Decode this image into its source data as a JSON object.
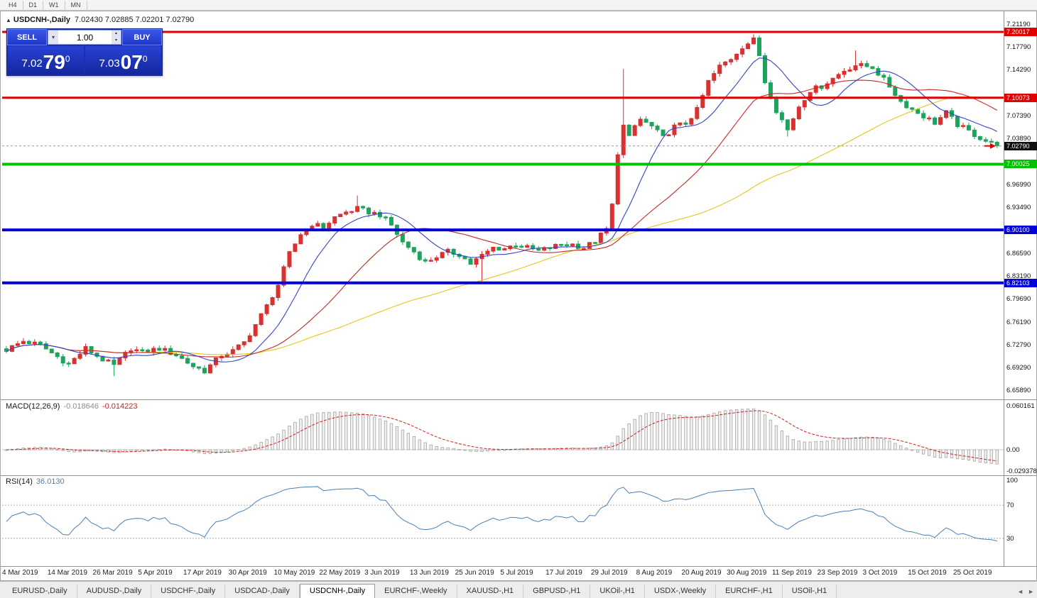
{
  "timeframe_bar": {
    "buttons": [
      "H4",
      "D1",
      "W1",
      "MN"
    ]
  },
  "icons": {
    "title_marker": "▲",
    "dropdown": "▾",
    "spin_up": "▴",
    "spin_down": "▾",
    "scroll_left": "◄",
    "scroll_right": "►"
  },
  "chart": {
    "symbol": "USDCNH-,Daily",
    "ohlc": "7.02430 7.02885 7.02201 7.02790"
  },
  "trade_panel": {
    "sell_label": "SELL",
    "buy_label": "BUY",
    "volume": "1.00",
    "sell_price": {
      "big": "7.02",
      "pips": "79",
      "sup": "0"
    },
    "buy_price": {
      "big": "7.03",
      "pips": "07",
      "sup": "0"
    }
  },
  "price_axis_ticks": [
    {
      "label": "7.21190",
      "price": 7.2119
    },
    {
      "label": "7.17790",
      "price": 7.1779
    },
    {
      "label": "7.14290",
      "price": 7.1429
    },
    {
      "label": "7.07390",
      "price": 7.0739
    },
    {
      "label": "7.03890",
      "price": 7.0389
    },
    {
      "label": "6.96990",
      "price": 6.9699
    },
    {
      "label": "6.93490",
      "price": 6.9349
    },
    {
      "label": "6.86590",
      "price": 6.8659
    },
    {
      "label": "6.83190",
      "price": 6.8319
    },
    {
      "label": "6.79690",
      "price": 6.7969
    },
    {
      "label": "6.76190",
      "price": 6.7619
    },
    {
      "label": "6.72790",
      "price": 6.7279
    },
    {
      "label": "6.69290",
      "price": 6.6929
    },
    {
      "label": "6.65890",
      "price": 6.6589
    }
  ],
  "macd_panel": {
    "name": "MACD(12,26,9)",
    "value_main": "-0.018646",
    "value_signal": "-0.014223",
    "axis": [
      {
        "label": "0.060161",
        "value": 0.060161
      },
      {
        "label": "0.00",
        "value": 0
      },
      {
        "label": "-0.029378",
        "value": -0.029378
      }
    ]
  },
  "rsi_panel": {
    "name": "RSI(14)",
    "value": "36.0130",
    "levels": [
      70,
      30
    ],
    "axis": [
      {
        "label": "100",
        "value": 100
      },
      {
        "label": "70",
        "value": 70
      },
      {
        "label": "30",
        "value": 30
      }
    ]
  },
  "time_axis": [
    "4 Mar 2019",
    "14 Mar 2019",
    "26 Mar 2019",
    "5 Apr 2019",
    "17 Apr 2019",
    "30 Apr 2019",
    "10 May 2019",
    "22 May 2019",
    "3 Jun 2019",
    "13 Jun 2019",
    "25 Jun 2019",
    "5 Jul 2019",
    "17 Jul 2019",
    "29 Jul 2019",
    "8 Aug 2019",
    "20 Aug 2019",
    "30 Aug 2019",
    "11 Sep 2019",
    "23 Sep 2019",
    "3 Oct 2019",
    "15 Oct 2019",
    "25 Oct 2019"
  ],
  "tab_bar": {
    "tabs": [
      "EURUSD-,Daily",
      "AUDUSD-,Daily",
      "USDCHF-,Daily",
      "USDCAD-,Daily",
      "USDCNH-,Daily",
      "EURCHF-,Weekly",
      "XAUUSD-,H1",
      "GBPUSD-,H1",
      "UKOil-,H1",
      "USDX-,Weekly",
      "EURCHF-,H1",
      "USOil-,H1"
    ],
    "active": "USDCNH-,Daily"
  },
  "chart_data": {
    "type": "candlestick",
    "symbol": "USDCNH",
    "timeframe": "Daily",
    "bars": 176,
    "price_range": [
      6.6589,
      7.2119
    ],
    "current": {
      "label": "7.02790",
      "price": 7.0279,
      "badge_color": "#101010"
    },
    "levels": [
      {
        "label": "7.20017",
        "price": 7.20017,
        "color": "#e00000",
        "width": 3
      },
      {
        "label": "7.10073",
        "price": 7.10073,
        "color": "#e00000",
        "width": 3
      },
      {
        "label": "7.00025",
        "price": 7.00025,
        "color": "#00c000",
        "width": 4
      },
      {
        "label": "6.90100",
        "price": 6.901,
        "color": "#0000d8",
        "width": 4
      },
      {
        "label": "6.82103",
        "price": 6.82103,
        "color": "#0000d8",
        "width": 4
      }
    ],
    "price_anchors": [
      [
        0,
        6.72
      ],
      [
        3,
        6.733
      ],
      [
        6,
        6.727
      ],
      [
        8,
        6.715
      ],
      [
        11,
        6.698
      ],
      [
        14,
        6.722
      ],
      [
        17,
        6.705
      ],
      [
        19,
        6.696
      ],
      [
        22,
        6.722
      ],
      [
        24,
        6.716
      ],
      [
        27,
        6.722
      ],
      [
        30,
        6.712
      ],
      [
        33,
        6.695
      ],
      [
        35,
        6.688
      ],
      [
        38,
        6.712
      ],
      [
        40,
        6.718
      ],
      [
        42,
        6.731
      ],
      [
        44,
        6.758
      ],
      [
        46,
        6.786
      ],
      [
        48,
        6.818
      ],
      [
        50,
        6.865
      ],
      [
        52,
        6.895
      ],
      [
        54,
        6.91
      ],
      [
        56,
        6.905
      ],
      [
        58,
        6.92
      ],
      [
        60,
        6.928
      ],
      [
        62,
        6.933
      ],
      [
        64,
        6.928
      ],
      [
        66,
        6.924
      ],
      [
        68,
        6.908
      ],
      [
        70,
        6.882
      ],
      [
        72,
        6.868
      ],
      [
        74,
        6.852
      ],
      [
        76,
        6.861
      ],
      [
        78,
        6.868
      ],
      [
        80,
        6.864
      ],
      [
        82,
        6.85
      ],
      [
        84,
        6.862
      ],
      [
        86,
        6.874
      ],
      [
        88,
        6.873
      ],
      [
        90,
        6.879
      ],
      [
        92,
        6.874
      ],
      [
        94,
        6.869
      ],
      [
        96,
        6.874
      ],
      [
        98,
        6.879
      ],
      [
        100,
        6.879
      ],
      [
        102,
        6.874
      ],
      [
        104,
        6.884
      ],
      [
        106,
        6.902
      ],
      [
        107,
        6.938
      ],
      [
        108,
        7.018
      ],
      [
        109,
        7.058
      ],
      [
        110,
        7.04
      ],
      [
        111,
        7.058
      ],
      [
        112,
        7.068
      ],
      [
        114,
        7.057
      ],
      [
        116,
        7.04
      ],
      [
        118,
        7.057
      ],
      [
        120,
        7.062
      ],
      [
        122,
        7.082
      ],
      [
        124,
        7.125
      ],
      [
        126,
        7.148
      ],
      [
        128,
        7.16
      ],
      [
        130,
        7.178
      ],
      [
        132,
        7.188
      ],
      [
        133,
        7.165
      ],
      [
        134,
        7.125
      ],
      [
        136,
        7.082
      ],
      [
        138,
        7.052
      ],
      [
        140,
        7.088
      ],
      [
        142,
        7.112
      ],
      [
        144,
        7.118
      ],
      [
        146,
        7.13
      ],
      [
        148,
        7.142
      ],
      [
        150,
        7.15
      ],
      [
        153,
        7.147
      ],
      [
        156,
        7.118
      ],
      [
        158,
        7.095
      ],
      [
        160,
        7.083
      ],
      [
        162,
        7.073
      ],
      [
        164,
        7.063
      ],
      [
        166,
        7.078
      ],
      [
        168,
        7.06
      ],
      [
        170,
        7.05
      ],
      [
        172,
        7.04
      ],
      [
        174,
        7.031
      ],
      [
        175,
        7.028
      ]
    ],
    "high_overrides": {
      "62": 6.953,
      "109": 7.144,
      "132": 7.1965,
      "150": 7.172
    },
    "low_overrides": {
      "19": 6.68,
      "35": 6.683,
      "84": 6.821,
      "138": 7.042
    },
    "up_color": "#d93030",
    "down_color": "#1ea35c",
    "ma": [
      {
        "period": 60,
        "color": "#e6c619"
      },
      {
        "period": 25,
        "color": "#c62828"
      },
      {
        "period": 10,
        "color": "#3344c8"
      }
    ],
    "macd": {
      "fast": 12,
      "slow": 26,
      "signal": 9
    },
    "rsi_period": 14,
    "x_label_indices": [
      0,
      8,
      16,
      24,
      32,
      40,
      48,
      56,
      64,
      72,
      80,
      88,
      96,
      104,
      112,
      120,
      128,
      136,
      144,
      152,
      160,
      168
    ]
  }
}
